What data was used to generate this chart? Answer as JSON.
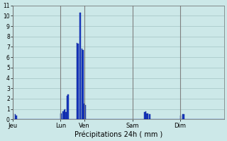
{
  "title": "",
  "xlabel": "Précipitations 24h ( mm )",
  "ylabel": "",
  "background_color": "#cce8e8",
  "bar_color": "#1a3cc8",
  "bar_edge_color": "#0a2090",
  "ylim": [
    0,
    11
  ],
  "yticks": [
    0,
    1,
    2,
    3,
    4,
    5,
    6,
    7,
    8,
    9,
    10,
    11
  ],
  "grid_color": "#aacaca",
  "day_labels": [
    "Jeu",
    "Lun",
    "Ven",
    "Sam",
    "Dim"
  ],
  "day_positions": [
    0,
    48,
    72,
    120,
    168
  ],
  "num_bars": 192,
  "bar_values": [
    0.6,
    0,
    0.5,
    0.4,
    0,
    0,
    0,
    0,
    0,
    0,
    0,
    0,
    0,
    0,
    0,
    0,
    0,
    0,
    0,
    0,
    0,
    0,
    0,
    0,
    0,
    0,
    0,
    0,
    0,
    0,
    0,
    0,
    0,
    0,
    0,
    0,
    0,
    0,
    0,
    0,
    0,
    0,
    0,
    0,
    0,
    0,
    0,
    0,
    0.6,
    0,
    0.8,
    0.9,
    1.0,
    0.7,
    2.3,
    2.4,
    0,
    0,
    0,
    0,
    0,
    0,
    0,
    0,
    7.4,
    7.3,
    0,
    10.3,
    0,
    6.8,
    6.7,
    1.5,
    1.4,
    0,
    0,
    0,
    0,
    0,
    0,
    0,
    0,
    0,
    0,
    0,
    0,
    0,
    0,
    0,
    0,
    0,
    0,
    0,
    0,
    0,
    0,
    0,
    0,
    0,
    0,
    0,
    0,
    0,
    0,
    0,
    0,
    0,
    0,
    0,
    0,
    0,
    0,
    0,
    0,
    0,
    0,
    0,
    0,
    0,
    0,
    0,
    0,
    0,
    0,
    0,
    0,
    0,
    0,
    0,
    0,
    0,
    0,
    0,
    0.7,
    0.8,
    0.6,
    0.6,
    0,
    0.5,
    0,
    0,
    0,
    0,
    0,
    0,
    0,
    0,
    0,
    0,
    0,
    0,
    0,
    0,
    0,
    0,
    0,
    0,
    0,
    0,
    0,
    0,
    0,
    0,
    0,
    0,
    0,
    0,
    0,
    0,
    0.4,
    0,
    0.5,
    0.5,
    0,
    0,
    0,
    0,
    0,
    0,
    0,
    0,
    0,
    0,
    0,
    0,
    0,
    0,
    0,
    0,
    0,
    0,
    0,
    0,
    0,
    0,
    0,
    0,
    0,
    0,
    0,
    0,
    0,
    0,
    0,
    0,
    0,
    0,
    0,
    0,
    0,
    0,
    0,
    0
  ]
}
